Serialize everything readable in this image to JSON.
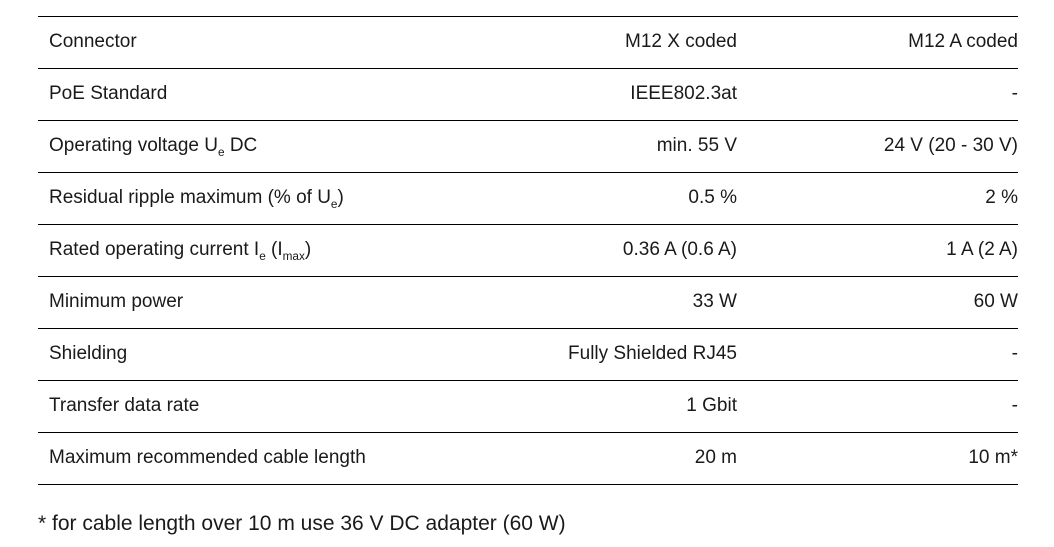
{
  "table": {
    "header": {
      "col1": "Connector",
      "col2": "M12 X coded",
      "col3": "M12 A coded"
    },
    "rows": [
      {
        "label": [
          {
            "t": "PoE Standard"
          }
        ],
        "x": "IEEE802.3at",
        "a": "-"
      },
      {
        "label": [
          {
            "t": "Operating voltage U"
          },
          {
            "t": "e",
            "sub": true
          },
          {
            "t": " DC"
          }
        ],
        "x": "min. 55 V",
        "a": "24 V (20 - 30 V)"
      },
      {
        "label": [
          {
            "t": "Residual ripple maximum (% of U"
          },
          {
            "t": "e",
            "sub": true
          },
          {
            "t": ")"
          }
        ],
        "x": "0.5 %",
        "a": "2 %"
      },
      {
        "label": [
          {
            "t": "Rated operating current I"
          },
          {
            "t": "e",
            "sub": true
          },
          {
            "t": " (I"
          },
          {
            "t": "max",
            "sub": true
          },
          {
            "t": ")"
          }
        ],
        "x": "0.36 A (0.6 A)",
        "a": "1 A (2 A)"
      },
      {
        "label": [
          {
            "t": "Minimum power"
          }
        ],
        "x": "33 W",
        "a": "60 W"
      },
      {
        "label": [
          {
            "t": "Shielding"
          }
        ],
        "x": "Fully Shielded RJ45",
        "a": "-"
      },
      {
        "label": [
          {
            "t": "Transfer data rate"
          }
        ],
        "x": "1 Gbit",
        "a": "-"
      },
      {
        "label": [
          {
            "t": "Maximum recommended cable length"
          }
        ],
        "x": "20 m",
        "a": "10 m*"
      }
    ],
    "footnote": "* for cable length over 10 m use 36 V DC adapter (60 W)"
  }
}
